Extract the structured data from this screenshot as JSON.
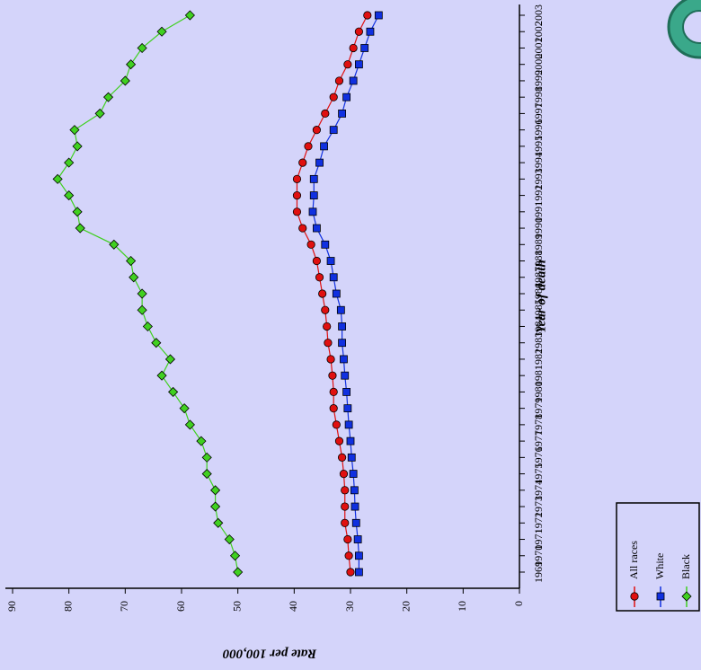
{
  "chart_data": {
    "type": "line",
    "xlabel": "Year of death",
    "ylabel": "Rate per 100,000",
    "categories": [
      "1969",
      "1970",
      "1971",
      "1972",
      "1973",
      "1974",
      "1975",
      "1976",
      "1977",
      "1978",
      "1979",
      "1980",
      "1981",
      "1982",
      "1983",
      "1984",
      "1985",
      "1986",
      "1987",
      "1988",
      "1989",
      "1990",
      "1991",
      "1992",
      "1993",
      "1994",
      "1995",
      "1996",
      "1997",
      "1998",
      "1999",
      "2000",
      "2001",
      "2002",
      "2003"
    ],
    "series": [
      {
        "name": "All races",
        "color": "#e01010",
        "marker": "circle",
        "values": [
          30,
          30.3,
          30.5,
          31,
          31,
          31,
          31.2,
          31.5,
          32,
          32.5,
          33,
          33,
          33.2,
          33.5,
          34,
          34.2,
          34.5,
          35,
          35.5,
          36,
          37,
          38.5,
          39.5,
          39.5,
          39.5,
          38.5,
          37.5,
          36,
          34.5,
          33,
          32,
          30.5,
          29.5,
          28.5,
          27
        ]
      },
      {
        "name": "White",
        "color": "#1030e0",
        "marker": "square",
        "values": [
          28.5,
          28.5,
          28.7,
          29,
          29.2,
          29.3,
          29.5,
          29.8,
          30,
          30.3,
          30.5,
          30.7,
          31,
          31.2,
          31.5,
          31.5,
          31.7,
          32.5,
          33,
          33.5,
          34.5,
          36,
          36.7,
          36.5,
          36.5,
          35.5,
          34.7,
          33,
          31.5,
          30.7,
          29.5,
          28.5,
          27.5,
          26.5,
          25
        ]
      },
      {
        "name": "Black",
        "color": "#40d020",
        "marker": "diamond",
        "values": [
          50,
          50.5,
          51.5,
          53.5,
          54,
          54,
          55.5,
          55.5,
          56.5,
          58.5,
          59.5,
          61.5,
          63.5,
          62,
          64.5,
          66,
          67,
          67,
          68.5,
          69,
          72,
          78,
          78.5,
          80,
          82,
          80,
          78.5,
          79,
          74.5,
          73,
          70,
          69,
          67,
          63.5,
          58.5
        ]
      }
    ],
    "ylim": [
      0,
      90
    ],
    "yticks": [
      0,
      10,
      20,
      30,
      40,
      50,
      60,
      70,
      80,
      90
    ]
  }
}
